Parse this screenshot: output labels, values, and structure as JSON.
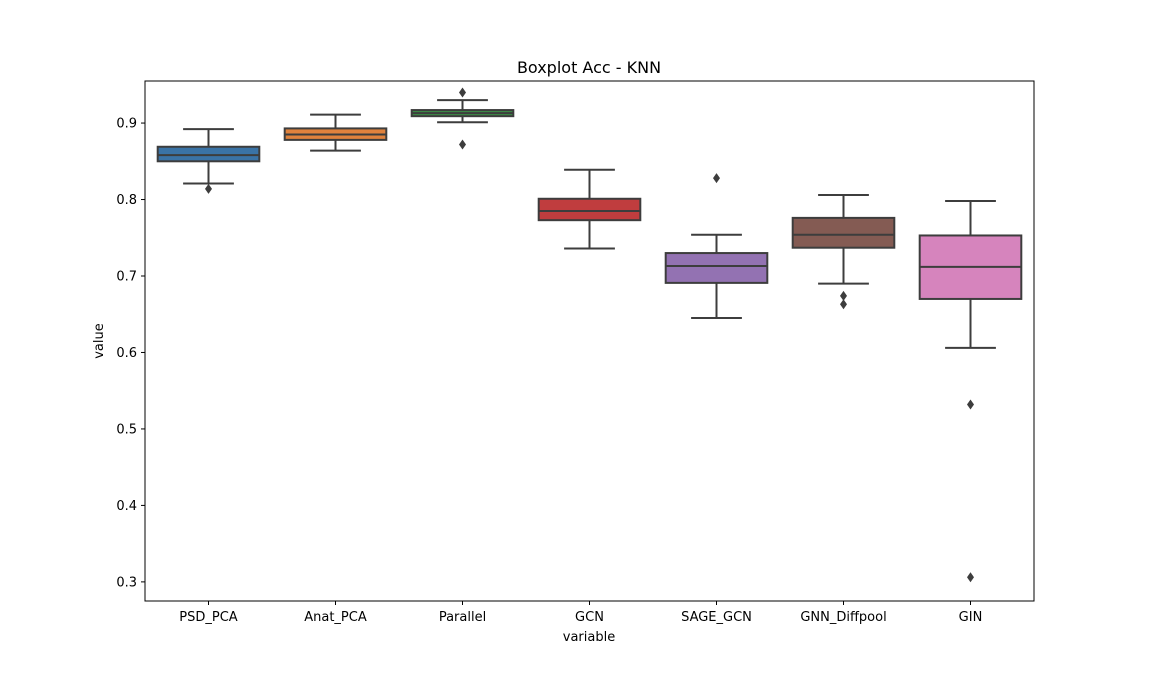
{
  "chart_data": {
    "type": "boxplot",
    "title": "Boxplot Acc - KNN",
    "xlabel": "variable",
    "ylabel": "value",
    "ylim": [
      0.275,
      0.955
    ],
    "yticks": [
      0.3,
      0.4,
      0.5,
      0.6,
      0.7,
      0.8,
      0.9
    ],
    "ytick_labels": [
      "0.3",
      "0.4",
      "0.5",
      "0.6",
      "0.7",
      "0.8",
      "0.9"
    ],
    "grid": false,
    "categories": [
      "PSD_PCA",
      "Anat_PCA",
      "Parallel",
      "GCN",
      "SAGE_GCN",
      "GNN_Diffpool",
      "GIN"
    ],
    "boxes": [
      {
        "color": "#3a73a6",
        "q1": 0.85,
        "median": 0.858,
        "q3": 0.869,
        "whisker_low": 0.821,
        "whisker_high": 0.892,
        "outliers": [
          0.814
        ]
      },
      {
        "color": "#e0823d",
        "q1": 0.878,
        "median": 0.885,
        "q3": 0.893,
        "whisker_low": 0.864,
        "whisker_high": 0.911,
        "outliers": []
      },
      {
        "color": "#3b8c45",
        "q1": 0.909,
        "median": 0.913,
        "q3": 0.917,
        "whisker_low": 0.901,
        "whisker_high": 0.93,
        "outliers": [
          0.94,
          0.872
        ]
      },
      {
        "color": "#c03d3e",
        "q1": 0.773,
        "median": 0.785,
        "q3": 0.801,
        "whisker_low": 0.736,
        "whisker_high": 0.839,
        "outliers": []
      },
      {
        "color": "#9372b2",
        "q1": 0.691,
        "median": 0.713,
        "q3": 0.73,
        "whisker_low": 0.645,
        "whisker_high": 0.754,
        "outliers": [
          0.828
        ]
      },
      {
        "color": "#845b53",
        "q1": 0.737,
        "median": 0.754,
        "q3": 0.776,
        "whisker_low": 0.69,
        "whisker_high": 0.806,
        "outliers": [
          0.674,
          0.663
        ]
      },
      {
        "color": "#d684bd",
        "q1": 0.67,
        "median": 0.712,
        "q3": 0.753,
        "whisker_low": 0.606,
        "whisker_high": 0.798,
        "outliers": [
          0.532,
          0.306
        ]
      }
    ],
    "edge_color": "#3d3d3d"
  }
}
